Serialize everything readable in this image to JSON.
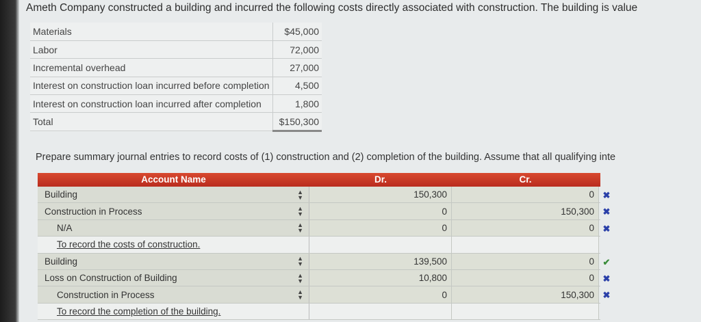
{
  "question": "Ameth Company constructed a building and incurred the following costs directly associated with construction. The building is value",
  "costs": [
    {
      "label": "Materials",
      "value": "$45,000"
    },
    {
      "label": "Labor",
      "value": "72,000"
    },
    {
      "label": "Incremental overhead",
      "value": "27,000"
    },
    {
      "label": "Interest on construction loan incurred before completion",
      "value": "4,500"
    },
    {
      "label": "Interest on construction loan incurred after completion",
      "value": "1,800"
    },
    {
      "label": "Total",
      "value": "$150,300"
    }
  ],
  "instruction": "Prepare summary journal entries to record costs of (1) construction and (2) completion of the building. Assume that all qualifying inte",
  "journal": {
    "headers": {
      "account": "Account Name",
      "dr": "Dr.",
      "cr": "Cr."
    },
    "rows": [
      {
        "account": "Building",
        "dr": "150,300",
        "cr": "0",
        "mark": "✖",
        "status": "incorrect"
      },
      {
        "account": "Construction in Process",
        "dr": "0",
        "cr": "150,300",
        "mark": "✖",
        "status": "incorrect"
      },
      {
        "account": "N/A",
        "dr": "0",
        "cr": "0",
        "mark": "✖",
        "status": "incorrect"
      },
      {
        "memo": "To record the costs of construction."
      },
      {
        "account": "Building",
        "dr": "139,500",
        "cr": "0",
        "mark": "✔",
        "status": "correct"
      },
      {
        "account": "Loss on Construction of Building",
        "dr": "10,800",
        "cr": "0",
        "mark": "✖",
        "status": "incorrect"
      },
      {
        "account": "Construction in Process",
        "dr": "0",
        "cr": "150,300",
        "mark": "✖",
        "status": "incorrect"
      },
      {
        "memo": "To record the completion of the building."
      }
    ]
  },
  "colors": {
    "header": "#c83a2a",
    "incorrect": "#2a3fa8",
    "correct": "#3b8d3b"
  }
}
